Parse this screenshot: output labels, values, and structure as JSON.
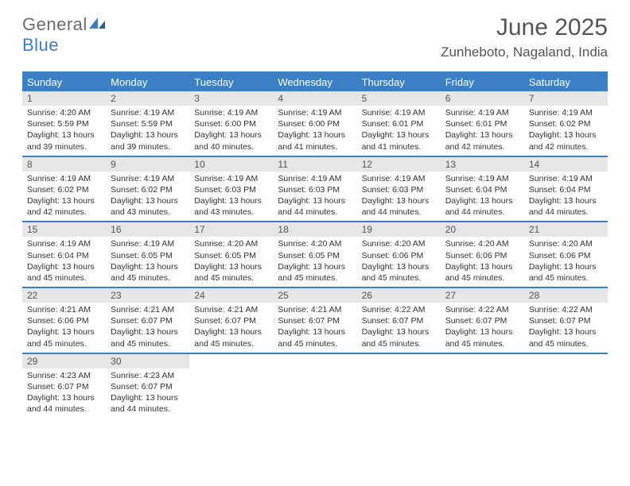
{
  "logo": {
    "text1": "General",
    "text2": "Blue",
    "icon_color": "#3b7fc4"
  },
  "header": {
    "month": "June 2025",
    "location": "Zunheboto, Nagaland, India"
  },
  "colors": {
    "brand": "#3b7fc4",
    "header_text": "#555555",
    "day_num_bg": "#e6e6e6",
    "body_text": "#333333"
  },
  "weekdays": [
    "Sunday",
    "Monday",
    "Tuesday",
    "Wednesday",
    "Thursday",
    "Friday",
    "Saturday"
  ],
  "weeks": [
    [
      {
        "num": "1",
        "sunrise": "Sunrise: 4:20 AM",
        "sunset": "Sunset: 5:59 PM",
        "daylight": "Daylight: 13 hours and 39 minutes."
      },
      {
        "num": "2",
        "sunrise": "Sunrise: 4:19 AM",
        "sunset": "Sunset: 5:59 PM",
        "daylight": "Daylight: 13 hours and 39 minutes."
      },
      {
        "num": "3",
        "sunrise": "Sunrise: 4:19 AM",
        "sunset": "Sunset: 6:00 PM",
        "daylight": "Daylight: 13 hours and 40 minutes."
      },
      {
        "num": "4",
        "sunrise": "Sunrise: 4:19 AM",
        "sunset": "Sunset: 6:00 PM",
        "daylight": "Daylight: 13 hours and 41 minutes."
      },
      {
        "num": "5",
        "sunrise": "Sunrise: 4:19 AM",
        "sunset": "Sunset: 6:01 PM",
        "daylight": "Daylight: 13 hours and 41 minutes."
      },
      {
        "num": "6",
        "sunrise": "Sunrise: 4:19 AM",
        "sunset": "Sunset: 6:01 PM",
        "daylight": "Daylight: 13 hours and 42 minutes."
      },
      {
        "num": "7",
        "sunrise": "Sunrise: 4:19 AM",
        "sunset": "Sunset: 6:02 PM",
        "daylight": "Daylight: 13 hours and 42 minutes."
      }
    ],
    [
      {
        "num": "8",
        "sunrise": "Sunrise: 4:19 AM",
        "sunset": "Sunset: 6:02 PM",
        "daylight": "Daylight: 13 hours and 42 minutes."
      },
      {
        "num": "9",
        "sunrise": "Sunrise: 4:19 AM",
        "sunset": "Sunset: 6:02 PM",
        "daylight": "Daylight: 13 hours and 43 minutes."
      },
      {
        "num": "10",
        "sunrise": "Sunrise: 4:19 AM",
        "sunset": "Sunset: 6:03 PM",
        "daylight": "Daylight: 13 hours and 43 minutes."
      },
      {
        "num": "11",
        "sunrise": "Sunrise: 4:19 AM",
        "sunset": "Sunset: 6:03 PM",
        "daylight": "Daylight: 13 hours and 44 minutes."
      },
      {
        "num": "12",
        "sunrise": "Sunrise: 4:19 AM",
        "sunset": "Sunset: 6:03 PM",
        "daylight": "Daylight: 13 hours and 44 minutes."
      },
      {
        "num": "13",
        "sunrise": "Sunrise: 4:19 AM",
        "sunset": "Sunset: 6:04 PM",
        "daylight": "Daylight: 13 hours and 44 minutes."
      },
      {
        "num": "14",
        "sunrise": "Sunrise: 4:19 AM",
        "sunset": "Sunset: 6:04 PM",
        "daylight": "Daylight: 13 hours and 44 minutes."
      }
    ],
    [
      {
        "num": "15",
        "sunrise": "Sunrise: 4:19 AM",
        "sunset": "Sunset: 6:04 PM",
        "daylight": "Daylight: 13 hours and 45 minutes."
      },
      {
        "num": "16",
        "sunrise": "Sunrise: 4:19 AM",
        "sunset": "Sunset: 6:05 PM",
        "daylight": "Daylight: 13 hours and 45 minutes."
      },
      {
        "num": "17",
        "sunrise": "Sunrise: 4:20 AM",
        "sunset": "Sunset: 6:05 PM",
        "daylight": "Daylight: 13 hours and 45 minutes."
      },
      {
        "num": "18",
        "sunrise": "Sunrise: 4:20 AM",
        "sunset": "Sunset: 6:05 PM",
        "daylight": "Daylight: 13 hours and 45 minutes."
      },
      {
        "num": "19",
        "sunrise": "Sunrise: 4:20 AM",
        "sunset": "Sunset: 6:06 PM",
        "daylight": "Daylight: 13 hours and 45 minutes."
      },
      {
        "num": "20",
        "sunrise": "Sunrise: 4:20 AM",
        "sunset": "Sunset: 6:06 PM",
        "daylight": "Daylight: 13 hours and 45 minutes."
      },
      {
        "num": "21",
        "sunrise": "Sunrise: 4:20 AM",
        "sunset": "Sunset: 6:06 PM",
        "daylight": "Daylight: 13 hours and 45 minutes."
      }
    ],
    [
      {
        "num": "22",
        "sunrise": "Sunrise: 4:21 AM",
        "sunset": "Sunset: 6:06 PM",
        "daylight": "Daylight: 13 hours and 45 minutes."
      },
      {
        "num": "23",
        "sunrise": "Sunrise: 4:21 AM",
        "sunset": "Sunset: 6:07 PM",
        "daylight": "Daylight: 13 hours and 45 minutes."
      },
      {
        "num": "24",
        "sunrise": "Sunrise: 4:21 AM",
        "sunset": "Sunset: 6:07 PM",
        "daylight": "Daylight: 13 hours and 45 minutes."
      },
      {
        "num": "25",
        "sunrise": "Sunrise: 4:21 AM",
        "sunset": "Sunset: 6:07 PM",
        "daylight": "Daylight: 13 hours and 45 minutes."
      },
      {
        "num": "26",
        "sunrise": "Sunrise: 4:22 AM",
        "sunset": "Sunset: 6:07 PM",
        "daylight": "Daylight: 13 hours and 45 minutes."
      },
      {
        "num": "27",
        "sunrise": "Sunrise: 4:22 AM",
        "sunset": "Sunset: 6:07 PM",
        "daylight": "Daylight: 13 hours and 45 minutes."
      },
      {
        "num": "28",
        "sunrise": "Sunrise: 4:22 AM",
        "sunset": "Sunset: 6:07 PM",
        "daylight": "Daylight: 13 hours and 45 minutes."
      }
    ],
    [
      {
        "num": "29",
        "sunrise": "Sunrise: 4:23 AM",
        "sunset": "Sunset: 6:07 PM",
        "daylight": "Daylight: 13 hours and 44 minutes."
      },
      {
        "num": "30",
        "sunrise": "Sunrise: 4:23 AM",
        "sunset": "Sunset: 6:07 PM",
        "daylight": "Daylight: 13 hours and 44 minutes."
      },
      null,
      null,
      null,
      null,
      null
    ]
  ]
}
